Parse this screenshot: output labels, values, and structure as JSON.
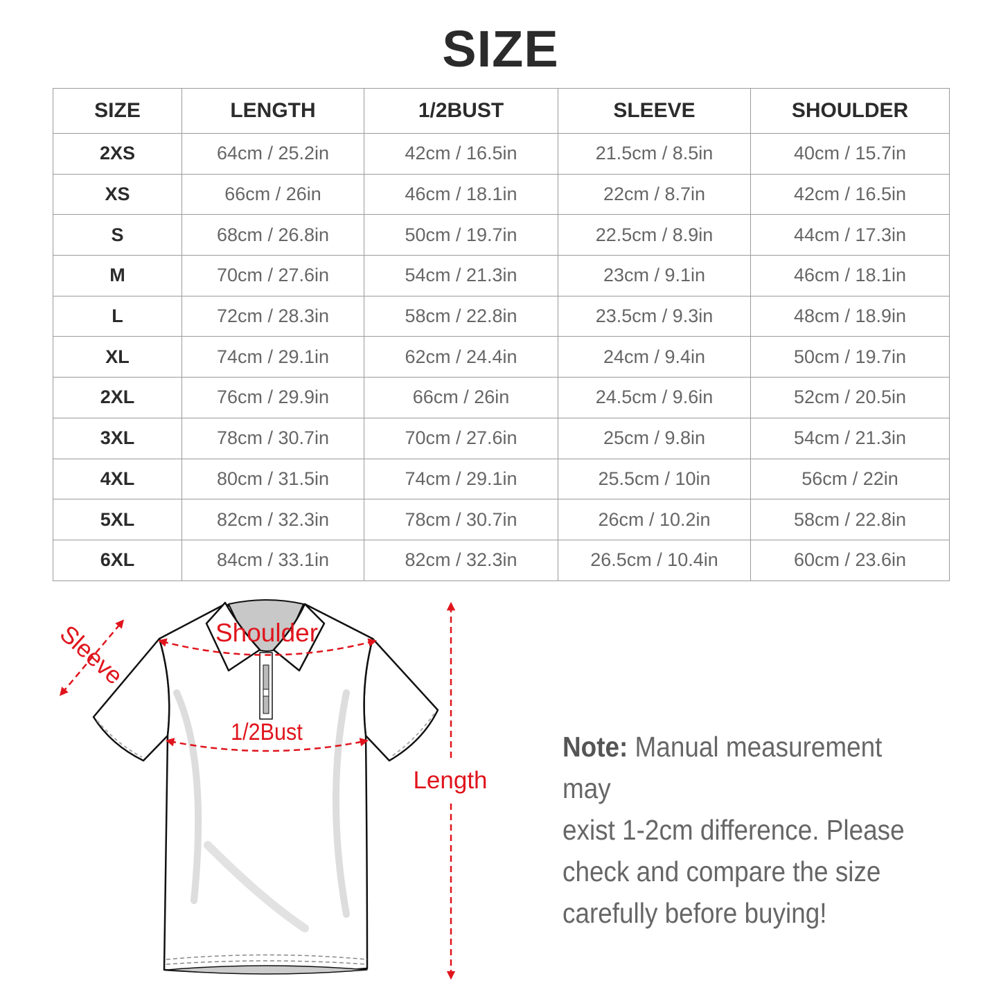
{
  "title": "SIZE",
  "table": {
    "headers": [
      "SIZE",
      "LENGTH",
      "1/2BUST",
      "SLEEVE",
      "SHOULDER"
    ],
    "rows": [
      [
        "2XS",
        "64cm / 25.2in",
        "42cm / 16.5in",
        "21.5cm / 8.5in",
        "40cm / 15.7in"
      ],
      [
        "XS",
        "66cm / 26in",
        "46cm / 18.1in",
        "22cm / 8.7in",
        "42cm / 16.5in"
      ],
      [
        "S",
        "68cm / 26.8in",
        "50cm / 19.7in",
        "22.5cm / 8.9in",
        "44cm / 17.3in"
      ],
      [
        "M",
        "70cm / 27.6in",
        "54cm / 21.3in",
        "23cm / 9.1in",
        "46cm / 18.1in"
      ],
      [
        "L",
        "72cm / 28.3in",
        "58cm / 22.8in",
        "23.5cm / 9.3in",
        "48cm / 18.9in"
      ],
      [
        "XL",
        "74cm / 29.1in",
        "62cm / 24.4in",
        "24cm / 9.4in",
        "50cm / 19.7in"
      ],
      [
        "2XL",
        "76cm / 29.9in",
        "66cm / 26in",
        "24.5cm / 9.6in",
        "52cm / 20.5in"
      ],
      [
        "3XL",
        "78cm / 30.7in",
        "70cm / 27.6in",
        "25cm / 9.8in",
        "54cm / 21.3in"
      ],
      [
        "4XL",
        "80cm / 31.5in",
        "74cm / 29.1in",
        "25.5cm / 10in",
        "56cm / 22in"
      ],
      [
        "5XL",
        "82cm / 32.3in",
        "78cm / 30.7in",
        "26cm / 10.2in",
        "58cm / 22.8in"
      ],
      [
        "6XL",
        "84cm / 33.1in",
        "82cm / 32.3in",
        "26.5cm / 10.4in",
        "60cm / 23.6in"
      ]
    ]
  },
  "diagram": {
    "labels": {
      "shoulder": "Shoulder",
      "sleeve": "Sleeve",
      "bust": "1/2Bust",
      "length": "Length"
    },
    "accent_color": "#e0141c"
  },
  "note": {
    "label": "Note:",
    "text": "Manual measurement may exist 1-2cm difference. Please check and compare the size carefully before buying!"
  }
}
